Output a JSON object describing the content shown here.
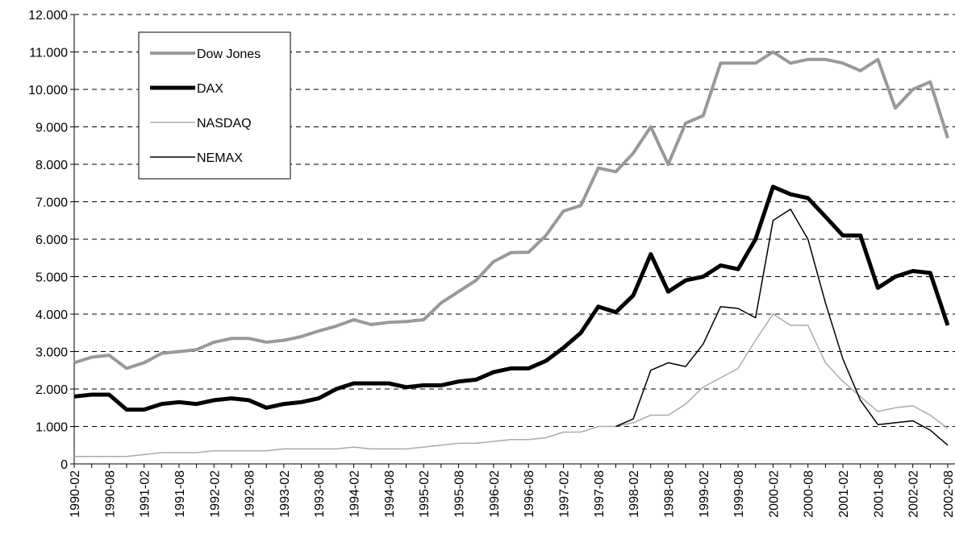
{
  "chart_data": {
    "type": "line",
    "categories": [
      "1990-02",
      null,
      "1990-08",
      null,
      "1991-02",
      null,
      "1991-08",
      null,
      "1992-02",
      null,
      "1992-08",
      null,
      "1993-02",
      null,
      "1993-08",
      null,
      "1994-02",
      null,
      "1994-08",
      null,
      "1995-02",
      null,
      "1995-08",
      null,
      "1996-02",
      null,
      "1996-08",
      null,
      "1997-02",
      null,
      "1997-08",
      null,
      "1998-02",
      null,
      "1998-08",
      null,
      "1999-02",
      null,
      "1999-08",
      null,
      "2000-02",
      null,
      "2000-08",
      null,
      "2001-02",
      null,
      "2001-08",
      null,
      "2002-02",
      null,
      "2002-08"
    ],
    "series": [
      {
        "name": "Dow Jones",
        "color": "#999999",
        "width": 4,
        "values": [
          2700,
          2850,
          2900,
          2550,
          2700,
          2950,
          3000,
          3050,
          3250,
          3350,
          3350,
          3250,
          3300,
          3400,
          3550,
          3680,
          3850,
          3720,
          3780,
          3800,
          3850,
          4300,
          4600,
          4900,
          5400,
          5640,
          5650,
          6100,
          6750,
          6900,
          7900,
          7800,
          8300,
          9000,
          8000,
          9100,
          9300,
          10700,
          10700,
          10700,
          11000,
          10700,
          10800,
          10800,
          10700,
          10500,
          10800,
          9500,
          10000,
          10200,
          8700
        ]
      },
      {
        "name": "DAX",
        "color": "#000000",
        "width": 5,
        "values": [
          1800,
          1850,
          1850,
          1450,
          1450,
          1600,
          1650,
          1600,
          1700,
          1750,
          1700,
          1500,
          1600,
          1650,
          1750,
          2000,
          2150,
          2150,
          2150,
          2050,
          2100,
          2100,
          2200,
          2250,
          2450,
          2550,
          2550,
          2750,
          3100,
          3500,
          4200,
          4050,
          4500,
          5600,
          4600,
          4900,
          5000,
          5300,
          5200,
          6000,
          7400,
          7200,
          7100,
          6600,
          6100,
          6100,
          4700,
          5000,
          5150,
          5100,
          3700
        ]
      },
      {
        "name": "NASDAQ",
        "color": "#aaaaaa",
        "width": 1.5,
        "values": [
          200,
          200,
          200,
          200,
          250,
          300,
          300,
          300,
          350,
          350,
          350,
          350,
          400,
          400,
          400,
          400,
          450,
          400,
          400,
          400,
          450,
          500,
          550,
          550,
          600,
          650,
          650,
          700,
          850,
          850,
          1000,
          1000,
          1100,
          1300,
          1300,
          1600,
          2050,
          2300,
          2550,
          3300,
          4000,
          3700,
          3700,
          2700,
          2200,
          1800,
          1400,
          1500,
          1550,
          1300,
          950
        ]
      },
      {
        "name": "NEMAX",
        "color": "#000000",
        "width": 1.5,
        "values": [
          null,
          null,
          null,
          null,
          null,
          null,
          null,
          null,
          null,
          null,
          null,
          null,
          null,
          null,
          null,
          null,
          null,
          null,
          null,
          null,
          null,
          null,
          null,
          null,
          null,
          null,
          null,
          null,
          null,
          null,
          null,
          1000,
          1200,
          2500,
          2700,
          2600,
          3200,
          4200,
          4150,
          3900,
          6500,
          6800,
          6000,
          4300,
          2800,
          1700,
          1050,
          1100,
          1150,
          900,
          500
        ]
      }
    ],
    "ylim": [
      0,
      12000
    ],
    "yticks": [
      0,
      {
        "value": 1000,
        "label": "1.000"
      },
      {
        "value": 2000,
        "label": "2.000"
      },
      {
        "value": 3000,
        "label": "3.000"
      },
      {
        "value": 4000,
        "label": "4.000"
      },
      {
        "value": 5000,
        "label": "5.000"
      },
      {
        "value": 6000,
        "label": "6.000"
      },
      {
        "value": 7000,
        "label": "7.000"
      },
      {
        "value": 8000,
        "label": "8.000"
      },
      {
        "value": 9000,
        "label": "9.000"
      },
      {
        "value": 10000,
        "label": "10.000"
      },
      {
        "value": 11000,
        "label": "11.000"
      },
      {
        "value": 12000,
        "label": "12.000"
      }
    ],
    "grid": true
  }
}
